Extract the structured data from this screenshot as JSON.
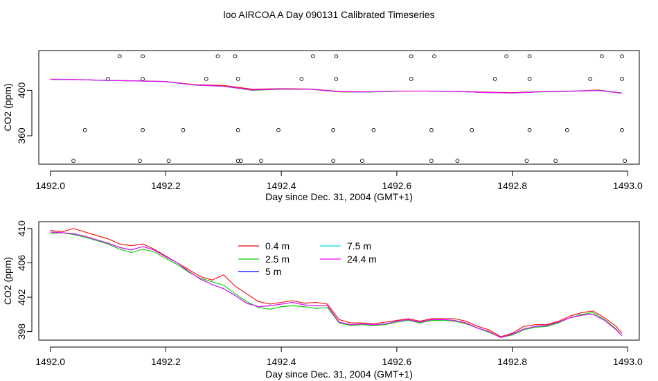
{
  "figure": {
    "title": "loo AIRCOA A  Day 090131  Calibrated Timeseries"
  },
  "chart_data": [
    {
      "type": "line",
      "xlabel": "Day since Dec. 31, 2004 (GMT+1)",
      "ylabel": "CO2 (ppm)",
      "xlim": [
        1491.98,
        1493.02
      ],
      "ylim": [
        335,
        435
      ],
      "xticks": [
        1492.0,
        1492.2,
        1492.4,
        1492.6,
        1492.8,
        1493.0
      ],
      "xtick_labels": [
        "1492.0",
        "1492.2",
        "1492.4",
        "1492.6",
        "1492.8",
        "1493.0"
      ],
      "yticks": [
        360,
        400
      ],
      "ytick_labels": [
        "360",
        "400"
      ],
      "grid": false,
      "x": [
        1492.0,
        1492.05,
        1492.1,
        1492.15,
        1492.2,
        1492.25,
        1492.3,
        1492.35,
        1492.4,
        1492.45,
        1492.5,
        1492.55,
        1492.6,
        1492.65,
        1492.7,
        1492.75,
        1492.8,
        1492.85,
        1492.9,
        1492.95,
        1492.99
      ],
      "series": [
        {
          "name": "0.4 m",
          "color": "#ff0000",
          "values": [
            409.8,
            409.5,
            408.8,
            408.5,
            407.8,
            405.0,
            404.3,
            401.0,
            401.5,
            401.2,
            399.1,
            398.8,
            399.4,
            399.4,
            399.2,
            398.5,
            398.0,
            398.9,
            399.3,
            400.3,
            397.6
          ]
        },
        {
          "name": "2.5 m",
          "color": "#00cc00",
          "values": [
            409.6,
            409.4,
            408.6,
            408.2,
            407.6,
            404.5,
            403.5,
            400.0,
            401.0,
            400.9,
            398.6,
            398.5,
            399.2,
            399.3,
            399.0,
            398.1,
            397.6,
            398.6,
            399.1,
            400.1,
            397.5
          ]
        },
        {
          "name": "5 m",
          "color": "#0000ff",
          "values": [
            409.7,
            409.4,
            408.7,
            408.3,
            407.7,
            404.7,
            403.6,
            400.3,
            401.2,
            401.0,
            398.8,
            398.6,
            399.3,
            399.3,
            399.1,
            398.2,
            397.7,
            398.7,
            399.2,
            400.0,
            397.5
          ]
        },
        {
          "name": "7.5 m",
          "color": "#00dddd",
          "values": [
            409.7,
            409.4,
            408.7,
            408.3,
            407.7,
            404.7,
            403.6,
            400.3,
            401.2,
            401.0,
            398.8,
            398.6,
            399.3,
            399.3,
            399.1,
            398.2,
            397.7,
            398.7,
            399.2,
            399.9,
            397.4
          ]
        },
        {
          "name": "24.4 m",
          "color": "#ff00ff",
          "values": [
            409.7,
            409.4,
            408.7,
            408.3,
            407.7,
            404.7,
            403.6,
            400.3,
            401.2,
            401.0,
            398.8,
            398.6,
            399.3,
            399.3,
            399.1,
            398.2,
            397.7,
            398.7,
            399.2,
            399.9,
            397.4
          ]
        }
      ],
      "markers": {
        "x": [
          1492.04,
          1492.06,
          1492.1,
          1492.12,
          1492.155,
          1492.16,
          1492.16,
          1492.16,
          1492.205,
          1492.23,
          1492.27,
          1492.29,
          1492.32,
          1492.325,
          1492.325,
          1492.325,
          1492.33,
          1492.365,
          1492.395,
          1492.435,
          1492.455,
          1492.49,
          1492.49,
          1492.495,
          1492.495,
          1492.54,
          1492.56,
          1492.625,
          1492.625,
          1492.66,
          1492.66,
          1492.665,
          1492.705,
          1492.73,
          1492.77,
          1492.79,
          1492.825,
          1492.83,
          1492.83,
          1492.83,
          1492.875,
          1492.895,
          1492.935,
          1492.955,
          1492.99,
          1492.99,
          1492.99,
          1492.995
        ],
        "y": [
          338,
          365,
          410,
          430,
          338,
          430,
          410,
          365,
          338,
          365,
          410,
          430,
          430,
          410,
          365,
          338,
          338,
          338,
          365,
          410,
          430,
          338,
          365,
          410,
          430,
          338,
          365,
          430,
          410,
          365,
          338,
          430,
          338,
          365,
          410,
          430,
          338,
          365,
          410,
          430,
          338,
          365,
          410,
          430,
          430,
          410,
          365,
          338
        ]
      }
    },
    {
      "type": "line",
      "xlabel": "Day since Dec. 31, 2004 (GMT+1)",
      "ylabel": "CO2 (ppm)",
      "xlim": [
        1491.98,
        1493.02
      ],
      "ylim": [
        397,
        410.8
      ],
      "xticks": [
        1492.0,
        1492.2,
        1492.4,
        1492.6,
        1492.8,
        1493.0
      ],
      "xtick_labels": [
        "1492.0",
        "1492.2",
        "1492.4",
        "1492.6",
        "1492.8",
        "1493.0"
      ],
      "yticks": [
        398,
        402,
        406,
        410
      ],
      "ytick_labels": [
        "398",
        "402",
        "406",
        "410"
      ],
      "grid": false,
      "legend": "top-center",
      "x": [
        1492.0,
        1492.02,
        1492.04,
        1492.06,
        1492.08,
        1492.1,
        1492.12,
        1492.14,
        1492.16,
        1492.18,
        1492.2,
        1492.22,
        1492.24,
        1492.26,
        1492.28,
        1492.3,
        1492.32,
        1492.34,
        1492.36,
        1492.38,
        1492.4,
        1492.42,
        1492.44,
        1492.46,
        1492.48,
        1492.5,
        1492.52,
        1492.54,
        1492.56,
        1492.58,
        1492.6,
        1492.62,
        1492.64,
        1492.66,
        1492.68,
        1492.7,
        1492.72,
        1492.74,
        1492.76,
        1492.78,
        1492.8,
        1492.82,
        1492.84,
        1492.86,
        1492.88,
        1492.9,
        1492.92,
        1492.94,
        1492.96,
        1492.98,
        1492.99
      ],
      "series": [
        {
          "name": "0.4 m",
          "color": "#ff0000",
          "values": [
            409.8,
            409.6,
            410.0,
            409.6,
            409.2,
            408.8,
            408.2,
            408.0,
            408.2,
            407.6,
            406.8,
            406.0,
            405.2,
            404.4,
            404.0,
            404.6,
            403.3,
            402.4,
            401.5,
            401.2,
            401.4,
            401.6,
            401.3,
            401.4,
            401.2,
            399.4,
            399.0,
            399.0,
            398.9,
            399.1,
            399.3,
            399.5,
            399.2,
            399.5,
            399.5,
            399.5,
            399.2,
            398.6,
            398.2,
            397.4,
            397.8,
            398.6,
            398.8,
            398.8,
            399.2,
            399.8,
            400.2,
            400.4,
            399.6,
            398.6,
            397.8
          ]
        },
        {
          "name": "2.5 m",
          "color": "#00cc00",
          "values": [
            409.4,
            409.5,
            409.3,
            409.0,
            408.6,
            408.2,
            407.6,
            407.2,
            407.6,
            407.3,
            406.5,
            405.8,
            404.9,
            404.2,
            403.8,
            403.4,
            402.4,
            401.5,
            400.8,
            400.6,
            400.9,
            401.0,
            400.9,
            400.7,
            400.8,
            399.0,
            398.7,
            398.8,
            398.7,
            398.8,
            399.1,
            399.3,
            399.0,
            399.3,
            399.3,
            399.2,
            398.9,
            398.4,
            397.9,
            397.3,
            397.6,
            398.2,
            398.5,
            398.6,
            399.0,
            399.6,
            400.0,
            400.2,
            399.4,
            398.3,
            397.5
          ]
        },
        {
          "name": "5 m",
          "color": "#0000ff",
          "values": [
            409.6,
            409.5,
            409.4,
            409.1,
            408.7,
            408.3,
            407.8,
            407.5,
            407.9,
            407.5,
            406.7,
            406.0,
            405.0,
            404.1,
            403.5,
            403.0,
            402.2,
            401.3,
            400.9,
            401.0,
            401.2,
            401.4,
            401.1,
            401.0,
            401.0,
            399.1,
            398.8,
            398.9,
            398.8,
            398.9,
            399.2,
            399.4,
            399.1,
            399.4,
            399.4,
            399.3,
            399.0,
            398.4,
            398.0,
            397.3,
            397.7,
            398.3,
            398.6,
            398.7,
            399.1,
            399.6,
            399.9,
            400.0,
            399.3,
            398.2,
            397.5
          ]
        },
        {
          "name": "7.5 m",
          "color": "#00dddd",
          "values": [
            409.6,
            409.5,
            409.4,
            409.1,
            408.7,
            408.3,
            407.8,
            407.5,
            407.9,
            407.5,
            406.7,
            406.0,
            405.0,
            404.1,
            403.5,
            403.0,
            402.2,
            401.3,
            400.9,
            401.0,
            401.2,
            401.4,
            401.1,
            401.0,
            401.0,
            399.1,
            398.8,
            398.9,
            398.8,
            398.9,
            399.2,
            399.4,
            399.1,
            399.4,
            399.4,
            399.3,
            399.0,
            398.4,
            398.0,
            397.3,
            397.7,
            398.3,
            398.6,
            398.7,
            399.1,
            399.6,
            399.9,
            400.0,
            399.3,
            398.2,
            397.5
          ]
        },
        {
          "name": "24.4 m",
          "color": "#ff00ff",
          "values": [
            409.6,
            409.5,
            409.4,
            409.1,
            408.7,
            408.3,
            407.8,
            407.5,
            407.9,
            407.5,
            406.7,
            406.0,
            405.0,
            404.1,
            403.5,
            403.0,
            402.2,
            401.3,
            400.9,
            401.0,
            401.2,
            401.4,
            401.1,
            401.0,
            401.0,
            399.1,
            398.8,
            398.9,
            398.8,
            398.9,
            399.2,
            399.4,
            399.1,
            399.4,
            399.4,
            399.3,
            399.0,
            398.4,
            398.0,
            397.3,
            397.7,
            398.3,
            398.6,
            398.7,
            399.1,
            399.6,
            399.9,
            400.0,
            399.3,
            398.2,
            397.5
          ]
        }
      ]
    }
  ]
}
